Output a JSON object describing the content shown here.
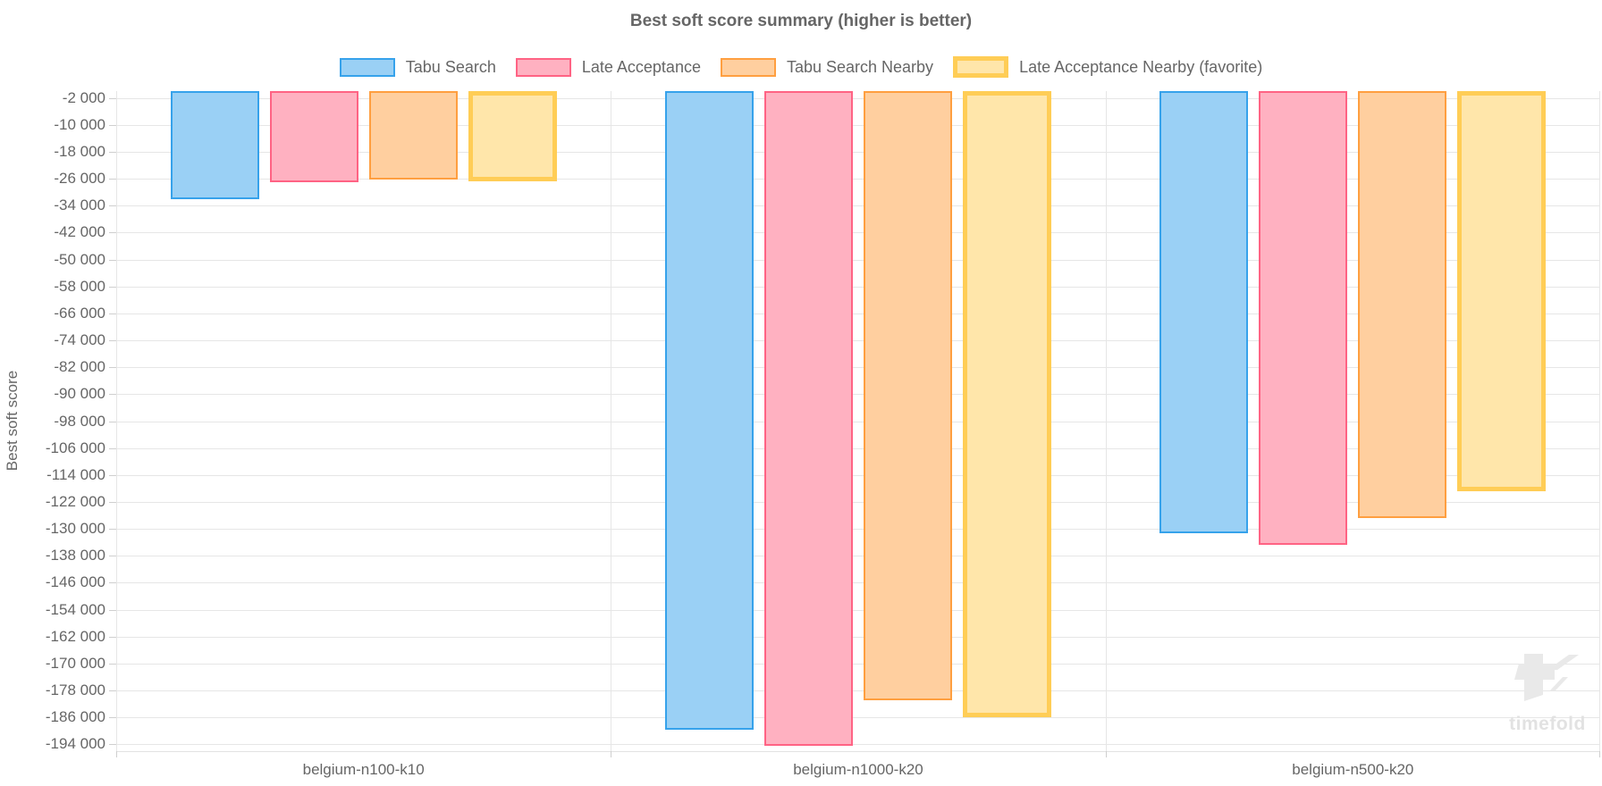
{
  "title": "Best soft score summary (higher is better)",
  "watermark": {
    "text": "timefold",
    "logo_icon": "timefold-logo-icon",
    "color": "#e9e9e9"
  },
  "chart_data": {
    "type": "bar",
    "title": "Best soft score summary (higher is better)",
    "xlabel": "",
    "ylabel": "Best soft score",
    "categories": [
      "belgium-n100-k10",
      "belgium-n1000-k20",
      "belgium-n500-k20"
    ],
    "series": [
      {
        "name": "Tabu Search",
        "values": [
          -32200,
          -189700,
          -131200
        ],
        "fill": "#9AD0F5",
        "border": "#36A2EB",
        "border_width": 2,
        "favorite": false
      },
      {
        "name": "Late Acceptance",
        "values": [
          -27000,
          -194300,
          -134700
        ],
        "fill": "#FFB1C1",
        "border": "#FF6384",
        "border_width": 2,
        "favorite": false
      },
      {
        "name": "Tabu Search Nearby",
        "values": [
          -26300,
          -180800,
          -126800
        ],
        "fill": "#FFCF9F",
        "border": "#FF9F40",
        "border_width": 2,
        "favorite": false
      },
      {
        "name": "Late Acceptance Nearby (favorite)",
        "values": [
          -26800,
          -186000,
          -118800
        ],
        "fill": "#FFE6AA",
        "border": "#FFCD56",
        "border_width": 5,
        "favorite": true
      }
    ],
    "ylim": [
      -196000,
      0
    ],
    "ytick_values": [
      -2000,
      -10000,
      -18000,
      -26000,
      -34000,
      -42000,
      -50000,
      -58000,
      -66000,
      -74000,
      -82000,
      -90000,
      -98000,
      -106000,
      -114000,
      -122000,
      -130000,
      -138000,
      -146000,
      -154000,
      -162000,
      -170000,
      -178000,
      -186000,
      -194000
    ],
    "ytick_labels": [
      "-2 000",
      "-10 000",
      "-18 000",
      "-26 000",
      "-34 000",
      "-42 000",
      "-50 000",
      "-58 000",
      "-66 000",
      "-74 000",
      "-82 000",
      "-90 000",
      "-98 000",
      "-106 000",
      "-114 000",
      "-122 000",
      "-130 000",
      "-138 000",
      "-146 000",
      "-154 000",
      "-162 000",
      "-170 000",
      "-178 000",
      "-186 000",
      "-194 000"
    ],
    "grid": true,
    "legend_position": "top",
    "grid_color": "#e6e6e6",
    "text_color": "#666666"
  }
}
